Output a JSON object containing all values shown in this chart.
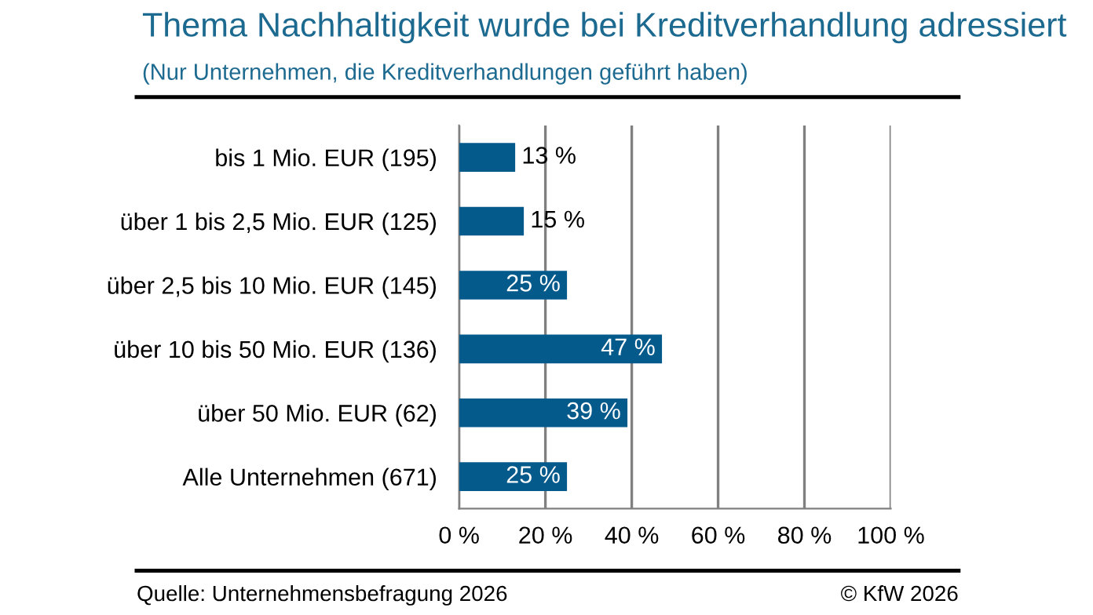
{
  "chart_data": {
    "type": "bar",
    "orientation": "horizontal",
    "title": "Thema Nachhaltigkeit wurde bei Kreditverhandlung adressiert",
    "subtitle": "(Nur Unternehmen, die Kreditverhandlungen geführt haben)",
    "categories": [
      "bis 1 Mio. EUR (195)",
      "über 1 bis 2,5 Mio. EUR (125)",
      "über 2,5 bis 10 Mio. EUR (145)",
      "über 10 bis 50 Mio. EUR (136)",
      "über 50 Mio. EUR (62)",
      "Alle Unternehmen (671)"
    ],
    "values": [
      13,
      15,
      25,
      47,
      39,
      25
    ],
    "value_labels": [
      "13 %",
      "15 %",
      "25 %",
      "47 %",
      "39 %",
      "25 %"
    ],
    "color": "#055a8c",
    "xlim": [
      0,
      100
    ],
    "xticks": [
      {
        "value": 0,
        "label": "0 %"
      },
      {
        "value": 20,
        "label": "20 %"
      },
      {
        "value": 40,
        "label": "40 %"
      },
      {
        "value": 60,
        "label": "60 %"
      },
      {
        "value": 80,
        "label": "80 %"
      },
      {
        "value": 100,
        "label": "100 %"
      }
    ],
    "grid": "x",
    "annotations": [
      "Quelle: Unternehmensbefragung 2026",
      "© KfW 2026"
    ]
  }
}
